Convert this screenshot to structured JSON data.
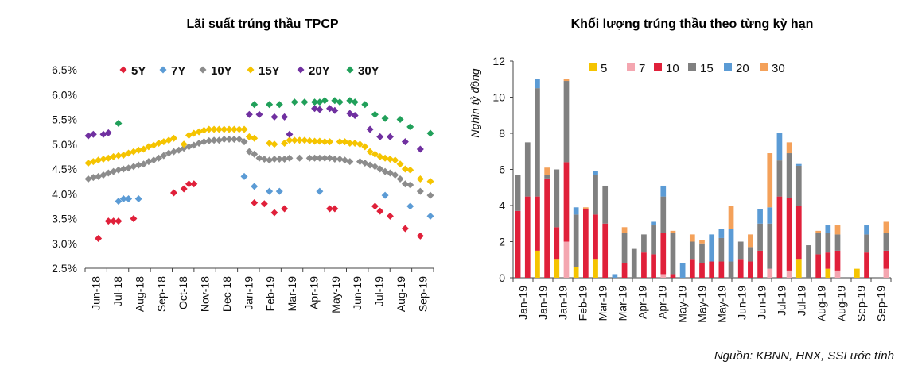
{
  "source_note": "Nguồn: KBNN, HNX, SSI ước tính",
  "chart_data": [
    {
      "type": "scatter",
      "title": "Lãi suất trúng thầu TPCP",
      "ylim": [
        2.5,
        6.5
      ],
      "yticks": [
        "2.5%",
        "3.0%",
        "3.5%",
        "4.0%",
        "4.5%",
        "5.0%",
        "5.5%",
        "6.0%",
        "6.5%"
      ],
      "x_labels": [
        "Jun-18",
        "Jul-18",
        "Aug-18",
        "Sep-18",
        "Oct-18",
        "Nov-18",
        "Dec-18",
        "Jan-19",
        "Feb-19",
        "Mar-19",
        "Apr-19",
        "May-19",
        "Jun-19",
        "Jul-19",
        "Aug-19",
        "Sep-19"
      ],
      "x_range": [
        0,
        68
      ],
      "legend_position": "top",
      "series": [
        {
          "name": "5Y",
          "color": "#e0203a",
          "points": [
            [
              2,
              3.1
            ],
            [
              4,
              3.45
            ],
            [
              5,
              3.45
            ],
            [
              6,
              3.45
            ],
            [
              9,
              3.5
            ],
            [
              17,
              4.02
            ],
            [
              19,
              4.1
            ],
            [
              20,
              4.2
            ],
            [
              21,
              4.2
            ],
            [
              33,
              3.82
            ],
            [
              35,
              3.8
            ],
            [
              37,
              3.62
            ],
            [
              39,
              3.7
            ],
            [
              48,
              3.7
            ],
            [
              49,
              3.7
            ],
            [
              57,
              3.75
            ],
            [
              58,
              3.65
            ],
            [
              60,
              3.55
            ],
            [
              63,
              3.3
            ],
            [
              66,
              3.15
            ]
          ]
        },
        {
          "name": "7Y",
          "color": "#5b9bd5",
          "points": [
            [
              6,
              3.85
            ],
            [
              7,
              3.9
            ],
            [
              8,
              3.9
            ],
            [
              10,
              3.9
            ],
            [
              31,
              4.35
            ],
            [
              33,
              4.15
            ],
            [
              36,
              4.05
            ],
            [
              38,
              4.05
            ],
            [
              46,
              4.05
            ],
            [
              59,
              3.97
            ],
            [
              64,
              3.75
            ],
            [
              68,
              3.55
            ]
          ]
        },
        {
          "name": "10Y",
          "color": "#8c8c8c",
          "points": [
            [
              0,
              4.3
            ],
            [
              1,
              4.33
            ],
            [
              2,
              4.35
            ],
            [
              3,
              4.38
            ],
            [
              4,
              4.42
            ],
            [
              5,
              4.45
            ],
            [
              6,
              4.48
            ],
            [
              7,
              4.5
            ],
            [
              8,
              4.52
            ],
            [
              9,
              4.55
            ],
            [
              10,
              4.58
            ],
            [
              11,
              4.6
            ],
            [
              12,
              4.65
            ],
            [
              13,
              4.68
            ],
            [
              14,
              4.72
            ],
            [
              15,
              4.77
            ],
            [
              16,
              4.82
            ],
            [
              17,
              4.85
            ],
            [
              18,
              4.88
            ],
            [
              19,
              4.92
            ],
            [
              20,
              4.95
            ],
            [
              21,
              4.98
            ],
            [
              22,
              5.02
            ],
            [
              23,
              5.05
            ],
            [
              24,
              5.07
            ],
            [
              25,
              5.08
            ],
            [
              26,
              5.08
            ],
            [
              27,
              5.1
            ],
            [
              28,
              5.1
            ],
            [
              29,
              5.1
            ],
            [
              30,
              5.1
            ],
            [
              31,
              5.05
            ],
            [
              32,
              4.85
            ],
            [
              33,
              4.8
            ],
            [
              34,
              4.72
            ],
            [
              35,
              4.7
            ],
            [
              36,
              4.68
            ],
            [
              37,
              4.7
            ],
            [
              38,
              4.7
            ],
            [
              39,
              4.7
            ],
            [
              40,
              4.72
            ],
            [
              42,
              4.72
            ],
            [
              44,
              4.72
            ],
            [
              45,
              4.72
            ],
            [
              46,
              4.72
            ],
            [
              47,
              4.72
            ],
            [
              48,
              4.72
            ],
            [
              49,
              4.7
            ],
            [
              50,
              4.7
            ],
            [
              51,
              4.68
            ],
            [
              52,
              4.65
            ],
            [
              54,
              4.65
            ],
            [
              55,
              4.62
            ],
            [
              56,
              4.58
            ],
            [
              57,
              4.55
            ],
            [
              58,
              4.5
            ],
            [
              59,
              4.45
            ],
            [
              60,
              4.42
            ],
            [
              61,
              4.38
            ],
            [
              62,
              4.3
            ],
            [
              63,
              4.2
            ],
            [
              64,
              4.18
            ],
            [
              66,
              4.05
            ],
            [
              68,
              3.97
            ]
          ]
        },
        {
          "name": "15Y",
          "color": "#f5c400",
          "points": [
            [
              0,
              4.62
            ],
            [
              1,
              4.65
            ],
            [
              2,
              4.68
            ],
            [
              3,
              4.7
            ],
            [
              4,
              4.72
            ],
            [
              5,
              4.75
            ],
            [
              6,
              4.77
            ],
            [
              7,
              4.78
            ],
            [
              8,
              4.82
            ],
            [
              9,
              4.85
            ],
            [
              10,
              4.88
            ],
            [
              11,
              4.9
            ],
            [
              12,
              4.95
            ],
            [
              13,
              4.98
            ],
            [
              14,
              5.02
            ],
            [
              15,
              5.05
            ],
            [
              16,
              5.08
            ],
            [
              17,
              5.12
            ],
            [
              19,
              5.0
            ],
            [
              20,
              5.18
            ],
            [
              21,
              5.22
            ],
            [
              22,
              5.25
            ],
            [
              23,
              5.28
            ],
            [
              24,
              5.3
            ],
            [
              25,
              5.3
            ],
            [
              26,
              5.3
            ],
            [
              27,
              5.3
            ],
            [
              28,
              5.3
            ],
            [
              29,
              5.3
            ],
            [
              30,
              5.3
            ],
            [
              31,
              5.3
            ],
            [
              32,
              5.15
            ],
            [
              33,
              5.12
            ],
            [
              36,
              5.02
            ],
            [
              37,
              5.0
            ],
            [
              39,
              5.02
            ],
            [
              40,
              5.08
            ],
            [
              41,
              5.08
            ],
            [
              42,
              5.08
            ],
            [
              43,
              5.08
            ],
            [
              44,
              5.07
            ],
            [
              45,
              5.06
            ],
            [
              46,
              5.06
            ],
            [
              47,
              5.05
            ],
            [
              48,
              5.05
            ],
            [
              50,
              5.05
            ],
            [
              51,
              5.05
            ],
            [
              52,
              5.02
            ],
            [
              53,
              5.02
            ],
            [
              54,
              5.0
            ],
            [
              55,
              4.95
            ],
            [
              56,
              4.85
            ],
            [
              57,
              4.8
            ],
            [
              58,
              4.75
            ],
            [
              59,
              4.72
            ],
            [
              60,
              4.7
            ],
            [
              61,
              4.68
            ],
            [
              62,
              4.6
            ],
            [
              63,
              4.5
            ],
            [
              64,
              4.48
            ],
            [
              66,
              4.3
            ],
            [
              68,
              4.25
            ]
          ]
        },
        {
          "name": "20Y",
          "color": "#7030a0",
          "points": [
            [
              0,
              5.17
            ],
            [
              1,
              5.2
            ],
            [
              3,
              5.2
            ],
            [
              4,
              5.23
            ],
            [
              32,
              5.6
            ],
            [
              34,
              5.6
            ],
            [
              37,
              5.55
            ],
            [
              39,
              5.55
            ],
            [
              40,
              5.2
            ],
            [
              45,
              5.72
            ],
            [
              46,
              5.7
            ],
            [
              48,
              5.72
            ],
            [
              49,
              5.68
            ],
            [
              52,
              5.62
            ],
            [
              53,
              5.58
            ],
            [
              56,
              5.3
            ],
            [
              58,
              5.15
            ],
            [
              60,
              5.15
            ],
            [
              63,
              5.05
            ],
            [
              66,
              4.9
            ]
          ]
        },
        {
          "name": "30Y",
          "color": "#21a05a",
          "points": [
            [
              6,
              5.42
            ],
            [
              33,
              5.8
            ],
            [
              36,
              5.8
            ],
            [
              38,
              5.8
            ],
            [
              41,
              5.85
            ],
            [
              43,
              5.85
            ],
            [
              45,
              5.85
            ],
            [
              46,
              5.85
            ],
            [
              47,
              5.88
            ],
            [
              49,
              5.88
            ],
            [
              50,
              5.85
            ],
            [
              52,
              5.88
            ],
            [
              53,
              5.85
            ],
            [
              55,
              5.8
            ],
            [
              57,
              5.6
            ],
            [
              59,
              5.52
            ],
            [
              62,
              5.5
            ],
            [
              64,
              5.35
            ],
            [
              68,
              5.22
            ]
          ]
        }
      ]
    },
    {
      "type": "bar",
      "stacked": true,
      "title": "Khối lượng trúng thầu theo từng kỳ hạn",
      "ylabel": "Nghìn tỷ đồng",
      "ylim": [
        0,
        12
      ],
      "yticks": [
        "0",
        "2",
        "4",
        "6",
        "8",
        "10",
        "12"
      ],
      "x_labels": [
        "Jan-19",
        "Jan-19",
        "Jan-19",
        "Feb-19",
        "Mar-19",
        "Mar-19",
        "Apr-19",
        "Apr-19",
        "May-19",
        "May-19",
        "May-19",
        "Jun-19",
        "Jun-19",
        "Jul-19",
        "Jul-19",
        "Aug-19",
        "Aug-19",
        "Sep-19",
        "Sep-19"
      ],
      "legend_position": "top",
      "series_names": [
        "5",
        "7",
        "10",
        "15",
        "20",
        "30"
      ],
      "colors": [
        "#f5c400",
        "#f4a6b0",
        "#e0203a",
        "#808080",
        "#5b9bd5",
        "#f4a15a"
      ],
      "bars": [
        [
          0,
          0,
          3.7,
          2.0,
          0,
          0
        ],
        [
          0,
          0,
          4.5,
          3.0,
          0,
          0
        ],
        [
          1.5,
          0,
          3.0,
          6.0,
          0.5,
          0
        ],
        [
          0,
          0,
          5.5,
          0.2,
          0,
          0.4
        ],
        [
          1.0,
          0,
          1.8,
          3.2,
          0,
          0
        ],
        [
          0,
          2.0,
          4.4,
          4.5,
          0,
          0.1
        ],
        [
          0.6,
          0,
          0,
          2.9,
          0.4,
          0
        ],
        [
          0,
          0,
          3.8,
          0,
          0,
          0.1
        ],
        [
          1.0,
          0,
          2.5,
          2.2,
          0.2,
          0
        ],
        [
          0,
          0,
          3.0,
          2.1,
          0,
          0
        ],
        [
          0,
          0,
          0,
          0,
          0.2,
          0
        ],
        [
          0,
          0,
          0.8,
          1.7,
          0,
          0.3
        ],
        [
          0,
          0,
          0,
          1.6,
          0,
          0
        ],
        [
          0,
          0,
          1.4,
          1.0,
          0,
          0
        ],
        [
          0,
          0,
          1.3,
          1.6,
          0.2,
          0
        ],
        [
          0,
          0.2,
          2.3,
          2.0,
          0.6,
          0
        ],
        [
          0,
          0,
          0.2,
          2.3,
          0,
          0.1
        ],
        [
          0,
          0,
          0,
          0,
          0.8,
          0
        ],
        [
          0,
          0,
          1.0,
          1.0,
          0,
          0.4
        ],
        [
          0,
          0,
          0.8,
          1.1,
          0,
          0.2
        ],
        [
          0,
          0,
          0.9,
          0,
          1.5,
          0
        ],
        [
          0,
          0,
          0.9,
          1.3,
          0.5,
          0
        ],
        [
          0,
          0,
          0,
          0.9,
          1.8,
          1.3
        ],
        [
          0,
          0,
          1.0,
          1.0,
          0,
          0
        ],
        [
          0,
          0,
          0.9,
          0.8,
          0,
          0.7
        ],
        [
          0,
          0,
          1.5,
          1.5,
          0.8,
          0
        ],
        [
          0,
          0.5,
          0,
          2.5,
          0.9,
          3.0
        ],
        [
          0,
          0,
          4.5,
          2.0,
          1.5,
          0
        ],
        [
          0,
          0.4,
          4.0,
          2.5,
          0,
          0.6
        ],
        [
          1.0,
          0,
          3.0,
          2.2,
          0.1,
          0
        ],
        [
          0,
          0,
          0,
          1.8,
          0,
          0
        ],
        [
          0,
          0,
          1.3,
          1.2,
          0,
          0.1
        ],
        [
          0.5,
          0,
          0.9,
          1.1,
          0.4,
          0
        ],
        [
          0,
          0.4,
          1.1,
          0.9,
          0,
          0.5
        ],
        [
          0,
          0,
          0,
          0,
          0,
          0
        ],
        [
          0.5,
          0,
          0,
          0,
          0,
          0
        ],
        [
          0,
          0,
          1.4,
          1.0,
          0.5,
          0
        ],
        [
          0,
          0,
          0,
          0,
          0,
          0
        ],
        [
          0,
          0.5,
          1.0,
          1.0,
          0,
          0.6
        ]
      ]
    }
  ]
}
